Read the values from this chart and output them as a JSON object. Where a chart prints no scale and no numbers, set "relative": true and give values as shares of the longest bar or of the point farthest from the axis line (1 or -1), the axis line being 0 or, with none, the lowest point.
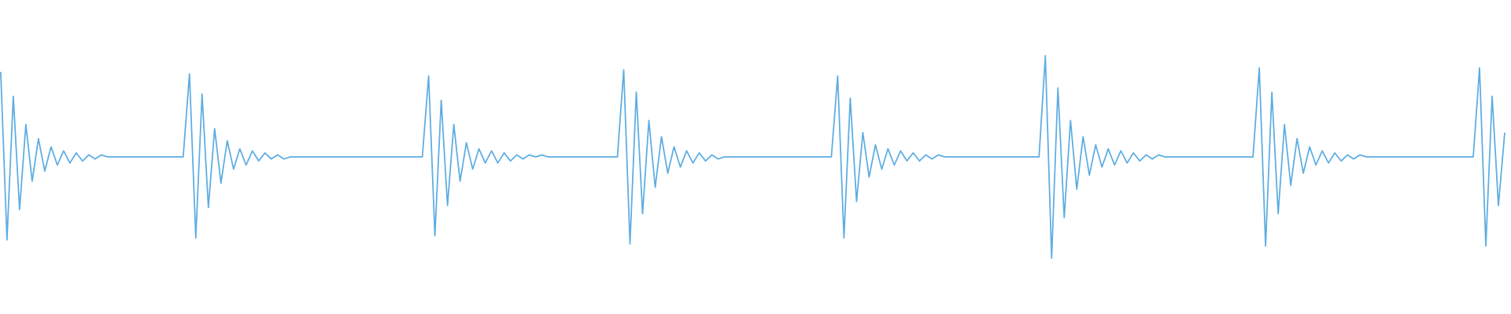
{
  "chart_data": {
    "type": "line",
    "relative": true,
    "color": "#5dade2",
    "categories": [
      null,
      null,
      null,
      null,
      null,
      null,
      null,
      null,
      null,
      null,
      null,
      null,
      null,
      null,
      null,
      null,
      null,
      null,
      null,
      null,
      null,
      null,
      null,
      null,
      null,
      null,
      null,
      null,
      null,
      null,
      null,
      null,
      null,
      null,
      null,
      null,
      null,
      null,
      null,
      null,
      null,
      null,
      null,
      null,
      null,
      null,
      null,
      null,
      null,
      null,
      null,
      null,
      null,
      null,
      null,
      null,
      null,
      null,
      null,
      null,
      null,
      null,
      null,
      null,
      null,
      null,
      null,
      null,
      null,
      null,
      null,
      null,
      null,
      null,
      null,
      null,
      null,
      null,
      null,
      null,
      null,
      null,
      null,
      null,
      null,
      null,
      null,
      null,
      null,
      null,
      null,
      null,
      null,
      null,
      null,
      null,
      null,
      null,
      null,
      null,
      null,
      null,
      null,
      null,
      null,
      null,
      null,
      null,
      null,
      null,
      null,
      null,
      null,
      null,
      null,
      null,
      null,
      null,
      null,
      null,
      null,
      null,
      null,
      null,
      null,
      null,
      null,
      null,
      null,
      null,
      null,
      null,
      null,
      null,
      null,
      null,
      null,
      null,
      null,
      null,
      null,
      null,
      null,
      null,
      null,
      null,
      null,
      null,
      null,
      null,
      null,
      null,
      null,
      null,
      null,
      null,
      null,
      null,
      null,
      null,
      null,
      null,
      null,
      null,
      null,
      null,
      null,
      null,
      null,
      null,
      null,
      null,
      null,
      null,
      null,
      null,
      null,
      null,
      null,
      null,
      null,
      null,
      null,
      null,
      null,
      null,
      null,
      null,
      null,
      null,
      null,
      null,
      null,
      null,
      null,
      null,
      null,
      null,
      null,
      null,
      null,
      null,
      null,
      null,
      null,
      null,
      null,
      null,
      null,
      null,
      null,
      null,
      null,
      null,
      null,
      null,
      null,
      null,
      null,
      null,
      null,
      null,
      null,
      null,
      null,
      null,
      null,
      null,
      null,
      null,
      null,
      null,
      null,
      null,
      null,
      null,
      null,
      null,
      null,
      null
    ],
    "values": [
      0.92,
      0.09,
      0.8,
      0.24,
      0.66,
      0.38,
      0.59,
      0.43,
      0.55,
      0.46,
      0.53,
      0.47,
      0.52,
      0.48,
      0.51,
      0.49,
      0.51,
      0.5,
      0.5,
      0.5,
      0.5,
      0.5,
      0.5,
      0.5,
      0.5,
      0.5,
      0.5,
      0.5,
      0.5,
      0.5,
      0.91,
      0.1,
      0.81,
      0.25,
      0.64,
      0.37,
      0.58,
      0.44,
      0.54,
      0.46,
      0.53,
      0.48,
      0.52,
      0.49,
      0.51,
      0.49,
      0.5,
      0.5,
      0.5,
      0.5,
      0.5,
      0.5,
      0.5,
      0.5,
      0.5,
      0.5,
      0.5,
      0.5,
      0.5,
      0.5,
      0.5,
      0.5,
      0.5,
      0.5,
      0.5,
      0.5,
      0.5,
      0.5,
      0.9,
      0.11,
      0.78,
      0.26,
      0.66,
      0.38,
      0.57,
      0.44,
      0.54,
      0.47,
      0.53,
      0.47,
      0.52,
      0.48,
      0.51,
      0.49,
      0.51,
      0.5,
      0.51,
      0.5,
      0.5,
      0.5,
      0.5,
      0.5,
      0.5,
      0.5,
      0.5,
      0.5,
      0.5,
      0.5,
      0.5,
      0.93,
      0.07,
      0.82,
      0.22,
      0.68,
      0.35,
      0.6,
      0.42,
      0.55,
      0.45,
      0.53,
      0.47,
      0.52,
      0.48,
      0.51,
      0.49,
      0.5,
      0.5,
      0.5,
      0.5,
      0.5,
      0.5,
      0.5,
      0.5,
      0.5,
      0.5,
      0.5,
      0.5,
      0.5,
      0.5,
      0.5,
      0.5,
      0.5,
      0.5,
      0.9,
      0.1,
      0.79,
      0.28,
      0.62,
      0.4,
      0.56,
      0.44,
      0.54,
      0.46,
      0.53,
      0.48,
      0.52,
      0.48,
      0.51,
      0.49,
      0.51,
      0.5,
      0.5,
      0.5,
      0.5,
      0.5,
      0.5,
      0.5,
      0.5,
      0.5,
      0.5,
      0.5,
      0.5,
      0.5,
      0.5,
      0.5,
      0.5,
      1.0,
      0.0,
      0.84,
      0.2,
      0.68,
      0.34,
      0.6,
      0.41,
      0.56,
      0.45,
      0.54,
      0.46,
      0.53,
      0.47,
      0.52,
      0.48,
      0.51,
      0.49,
      0.51,
      0.5,
      0.5,
      0.5,
      0.5,
      0.5,
      0.5,
      0.5,
      0.5,
      0.5,
      0.5,
      0.5,
      0.5,
      0.5,
      0.5,
      0.5,
      0.94,
      0.06,
      0.82,
      0.22,
      0.66,
      0.36,
      0.59,
      0.42,
      0.55,
      0.46,
      0.53,
      0.47,
      0.52,
      0.48,
      0.51,
      0.49,
      0.51,
      0.5,
      0.5,
      0.5,
      0.5,
      0.5,
      0.5,
      0.5,
      0.5,
      0.5,
      0.5,
      0.5,
      0.5,
      0.5,
      0.5,
      0.5,
      0.5,
      0.5,
      0.5,
      0.94,
      0.06,
      0.8,
      0.26,
      0.62
    ]
  }
}
